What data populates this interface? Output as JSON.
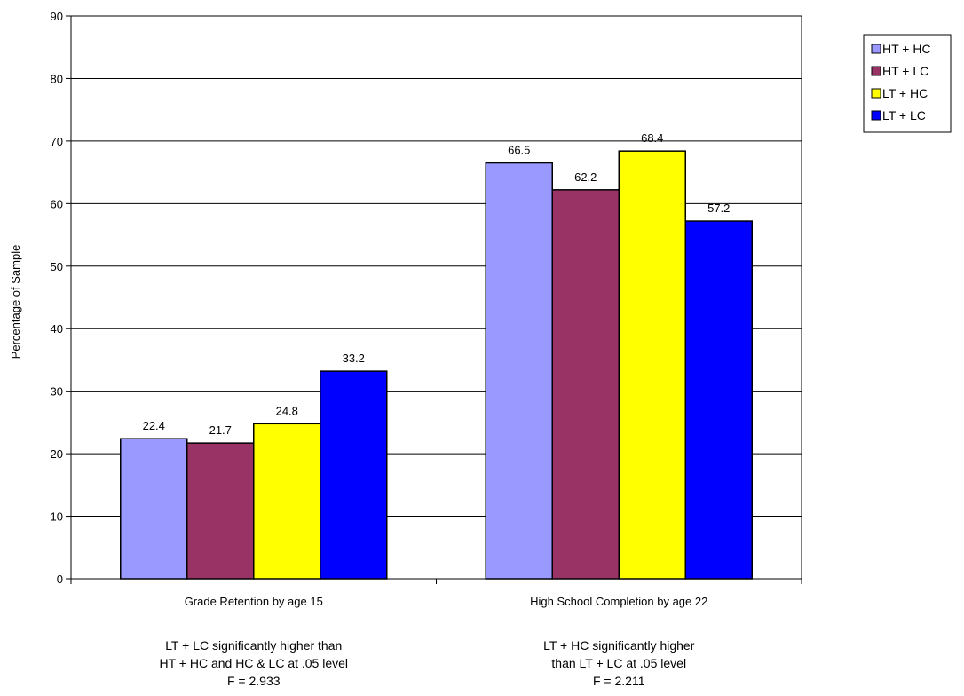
{
  "chart_data": {
    "type": "bar",
    "categories": [
      "Grade Retention by age 15",
      "High School Completion by age 22"
    ],
    "series": [
      {
        "name": "HT + HC",
        "values": [
          22.4,
          66.5
        ],
        "color": "#9999ff"
      },
      {
        "name": "HT + LC",
        "values": [
          21.7,
          62.2
        ],
        "color": "#993366"
      },
      {
        "name": "LT + HC",
        "values": [
          24.8,
          68.4
        ],
        "color": "#ffff00"
      },
      {
        "name": "LT + LC",
        "values": [
          33.2,
          57.2
        ],
        "color": "#0000ff"
      }
    ],
    "ylabel": "Percentage of Sample",
    "ylim": [
      0,
      90
    ],
    "yticks": [
      0,
      10,
      20,
      30,
      40,
      50,
      60,
      70,
      80,
      90
    ],
    "grid": true,
    "legend": "top-right",
    "notes": [
      [
        "LT + LC significantly higher than",
        "HT + HC and HC & LC at .05 level",
        "F = 2.933"
      ],
      [
        "LT + HC significantly higher",
        "than LT + LC at .05 level",
        "F = 2.211"
      ]
    ]
  }
}
